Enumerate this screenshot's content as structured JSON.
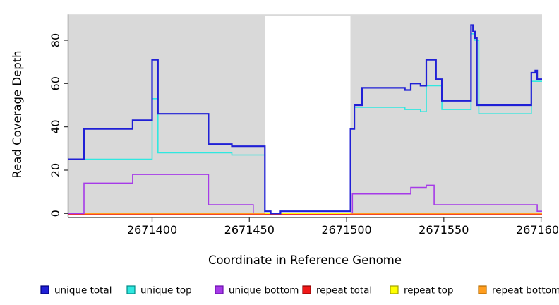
{
  "chart_data": {
    "type": "line",
    "title": "",
    "xlabel": "Coordinate in Reference Genome",
    "ylabel": "Read Coverage Depth",
    "xlim": [
      2671357,
      2671600.5
    ],
    "ylim": [
      -0.3,
      92
    ],
    "x_ticks": [
      2671400,
      2671450,
      2671500,
      2671550,
      2671600
    ],
    "x_tick_labels": [
      "2671400",
      "2671450",
      "2671500",
      "2671550",
      "2671600"
    ],
    "y_ticks": [
      0,
      20,
      40,
      60,
      80
    ],
    "y_tick_labels": [
      "0",
      "20",
      "40",
      "60",
      "80"
    ],
    "grid": "off",
    "panel_bg": "#d9d9d9",
    "axis_color": "#3c3c3c",
    "band": {
      "x0": 2671458,
      "x1": 2671502,
      "color": "#ffffff"
    },
    "legend_position": "bottom",
    "series": [
      {
        "name": "unique total",
        "color": "#2020d6",
        "swatch_border": "#00007d",
        "width": 2.2,
        "z": 6,
        "paths": [
          [
            [
              2671357,
              25
            ],
            [
              2671365,
              39
            ],
            [
              2671390,
              43
            ],
            [
              2671400,
              71
            ],
            [
              2671403,
              46
            ],
            [
              2671429,
              32
            ],
            [
              2671441,
              31
            ],
            [
              2671458,
              1
            ],
            [
              2671461,
              0
            ],
            [
              2671466,
              1
            ],
            [
              2671502,
              39
            ],
            [
              2671504,
              50
            ],
            [
              2671508,
              58
            ],
            [
              2671530,
              57
            ],
            [
              2671533,
              60
            ],
            [
              2671538,
              59
            ],
            [
              2671541,
              71
            ],
            [
              2671546,
              62
            ],
            [
              2671549,
              52
            ],
            [
              2671564,
              87
            ],
            [
              2671565,
              84
            ],
            [
              2671566,
              81
            ],
            [
              2671567,
              50
            ],
            [
              2671595,
              65
            ],
            [
              2671597,
              66
            ],
            [
              2671598,
              62
            ],
            [
              2671600.5,
              62
            ]
          ]
        ]
      },
      {
        "name": "unique top",
        "color": "#2fe8e0",
        "swatch_border": "#008b85",
        "width": 1.6,
        "z": 5,
        "paths": [
          [
            [
              2671357,
              25
            ],
            [
              2671400,
              53
            ],
            [
              2671403,
              28
            ],
            [
              2671441,
              27
            ],
            [
              2671458,
              1
            ],
            [
              2671461,
              0
            ],
            [
              2671466,
              1
            ],
            [
              2671502,
              39
            ],
            [
              2671504,
              49
            ],
            [
              2671530,
              48
            ],
            [
              2671538,
              47
            ],
            [
              2671541,
              59
            ],
            [
              2671549,
              48
            ],
            [
              2671564,
              83
            ],
            [
              2671566,
              80
            ],
            [
              2671568,
              46
            ],
            [
              2671595,
              61
            ],
            [
              2671600.5,
              61
            ]
          ]
        ]
      },
      {
        "name": "unique bottom",
        "color": "#a63ae8",
        "swatch_border": "#6a0dad",
        "width": 1.6,
        "z": 4,
        "paths": [
          [
            [
              2671357,
              0
            ],
            [
              2671365,
              14
            ],
            [
              2671390,
              18
            ],
            [
              2671429,
              4
            ],
            [
              2671452,
              0
            ]
          ],
          [
            [
              2671503,
              0
            ],
            [
              2671503,
              9
            ],
            [
              2671533,
              12
            ],
            [
              2671541,
              13
            ],
            [
              2671545,
              4
            ],
            [
              2671598,
              1
            ],
            [
              2671600.5,
              1
            ]
          ]
        ]
      },
      {
        "name": "repeat total",
        "color": "#f01818",
        "swatch_border": "#8b0000",
        "width": 1.4,
        "z": 1,
        "dy": 1.5,
        "paths": [
          [
            [
              2671357,
              0
            ],
            [
              2671600.5,
              0
            ]
          ]
        ]
      },
      {
        "name": "repeat top",
        "color": "#ffff00",
        "swatch_border": "#a0a000",
        "width": 1.4,
        "z": 2,
        "paths": [
          [
            [
              2671357,
              0
            ],
            [
              2671600.5,
              0
            ]
          ]
        ]
      },
      {
        "name": "repeat bottom",
        "color": "#ff9d1e",
        "swatch_border": "#b36b00",
        "width": 2,
        "z": 3,
        "paths": [
          [
            [
              2671365,
              0
            ],
            [
              2671458,
              0
            ]
          ],
          [
            [
              2671502,
              0
            ],
            [
              2671600.5,
              0
            ]
          ]
        ]
      }
    ]
  }
}
